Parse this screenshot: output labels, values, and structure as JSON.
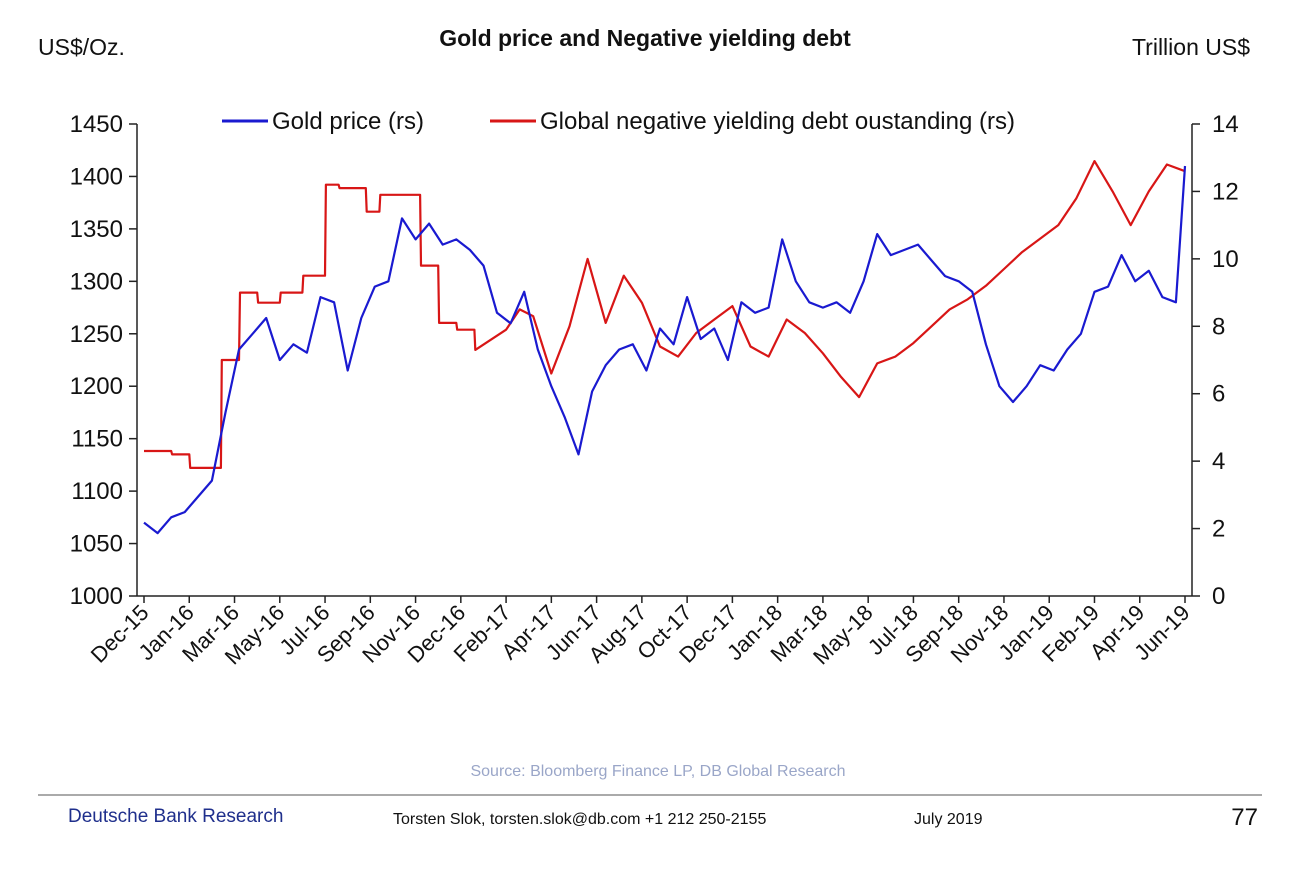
{
  "chart_data": {
    "type": "line",
    "title": "Gold price and Negative yielding debt",
    "left_axis_unit": "US$/Oz.",
    "right_axis_unit": "Trillion US$",
    "ylim_left": [
      1000,
      1450
    ],
    "ylim_right": [
      0,
      14
    ],
    "yticks_left": [
      "1000",
      "1050",
      "1100",
      "1150",
      "1200",
      "1250",
      "1300",
      "1350",
      "1400",
      "1450"
    ],
    "yticks_right": [
      "0",
      "2",
      "4",
      "6",
      "8",
      "10",
      "12",
      "14"
    ],
    "x_tick_labels": [
      "Dec-15",
      "Jan-16",
      "Mar-16",
      "May-16",
      "Jul-16",
      "Sep-16",
      "Nov-16",
      "Dec-16",
      "Feb-17",
      "Apr-17",
      "Jun-17",
      "Aug-17",
      "Oct-17",
      "Dec-17",
      "Jan-18",
      "Mar-18",
      "May-18",
      "Jul-18",
      "Sep-18",
      "Nov-18",
      "Jan-19",
      "Feb-19",
      "Apr-19",
      "Jun-19"
    ],
    "grid": false,
    "legend_position": "top",
    "series": [
      {
        "name": "Gold price (rs)",
        "color": "#1a1ad0",
        "axis": "left",
        "x": [
          0,
          0.3,
          0.6,
          0.9,
          1.2,
          1.5,
          1.8,
          2.1,
          2.4,
          2.7,
          3.0,
          3.3,
          3.6,
          3.9,
          4.2,
          4.5,
          4.8,
          5.1,
          5.4,
          5.7,
          6.0,
          6.3,
          6.6,
          6.9,
          7.2,
          7.5,
          7.8,
          8.1,
          8.4,
          8.7,
          9.0,
          9.3,
          9.6,
          9.9,
          10.2,
          10.5,
          10.8,
          11.1,
          11.4,
          11.7,
          12.0,
          12.3,
          12.6,
          12.9,
          13.2,
          13.5,
          13.8,
          14.1,
          14.4,
          14.7,
          15.0,
          15.3,
          15.6,
          15.9,
          16.2,
          16.5,
          16.8,
          17.1,
          17.4,
          17.7,
          18.0,
          18.3,
          18.6,
          18.9,
          19.2,
          19.5,
          19.8,
          20.1,
          20.4,
          20.7,
          21.0,
          21.3,
          21.6,
          21.9,
          22.2,
          22.5,
          22.8,
          23.0
        ],
        "values": [
          1070,
          1060,
          1075,
          1080,
          1095,
          1110,
          1175,
          1235,
          1250,
          1265,
          1225,
          1240,
          1232,
          1285,
          1280,
          1215,
          1265,
          1295,
          1300,
          1360,
          1340,
          1355,
          1335,
          1340,
          1330,
          1315,
          1270,
          1260,
          1290,
          1235,
          1200,
          1170,
          1135,
          1195,
          1220,
          1235,
          1240,
          1215,
          1255,
          1240,
          1285,
          1245,
          1255,
          1225,
          1280,
          1270,
          1275,
          1340,
          1300,
          1280,
          1275,
          1280,
          1270,
          1300,
          1345,
          1325,
          1330,
          1335,
          1320,
          1305,
          1300,
          1290,
          1240,
          1200,
          1185,
          1200,
          1220,
          1215,
          1235,
          1250,
          1290,
          1295,
          1325,
          1300,
          1310,
          1285,
          1280,
          1410
        ]
      },
      {
        "name": "Global negative yielding debt oustanding (rs)",
        "color": "#d81616",
        "axis": "right",
        "x": [
          0,
          0.6,
          0.62,
          1.0,
          1.02,
          1.7,
          1.72,
          2.1,
          2.12,
          2.5,
          2.52,
          3.0,
          3.02,
          3.5,
          3.52,
          4.0,
          4.02,
          4.3,
          4.32,
          4.9,
          4.92,
          5.2,
          5.22,
          6.1,
          6.12,
          6.5,
          6.52,
          6.9,
          6.92,
          7.3,
          7.32,
          8.0,
          8.3,
          8.6,
          9.0,
          9.4,
          9.8,
          10.2,
          10.6,
          11.0,
          11.4,
          11.8,
          12.2,
          12.6,
          13.0,
          13.4,
          13.8,
          14.2,
          14.6,
          15.0,
          15.4,
          15.8,
          16.2,
          16.6,
          17.0,
          17.4,
          17.8,
          18.2,
          18.6,
          19.0,
          19.4,
          19.8,
          20.2,
          20.6,
          21.0,
          21.4,
          21.8,
          22.2,
          22.6,
          23.0
        ],
        "values": [
          4.3,
          4.3,
          4.2,
          4.2,
          3.8,
          3.8,
          7.0,
          7.0,
          9.0,
          9.0,
          8.7,
          8.7,
          9.0,
          9.0,
          9.5,
          9.5,
          12.2,
          12.2,
          12.1,
          12.1,
          11.4,
          11.4,
          11.9,
          11.9,
          9.8,
          9.8,
          8.1,
          8.1,
          7.9,
          7.9,
          7.3,
          7.9,
          8.5,
          8.3,
          6.6,
          8.0,
          10.0,
          8.1,
          9.5,
          8.7,
          7.4,
          7.1,
          7.8,
          8.2,
          8.6,
          7.4,
          7.1,
          8.2,
          7.8,
          7.2,
          6.5,
          5.9,
          6.9,
          7.1,
          7.5,
          8.0,
          8.5,
          8.8,
          9.2,
          9.7,
          10.2,
          10.6,
          11.0,
          11.8,
          12.9,
          12.0,
          11.0,
          12.0,
          12.8,
          12.6
        ]
      }
    ]
  },
  "source": "Source: Bloomberg Finance LP,  DB Global Research",
  "footer": {
    "brand": "Deutsche Bank Research",
    "contact": "Torsten Slok, torsten.slok@db.com  +1 212 250-2155",
    "date": "July 2019",
    "page": "77"
  }
}
